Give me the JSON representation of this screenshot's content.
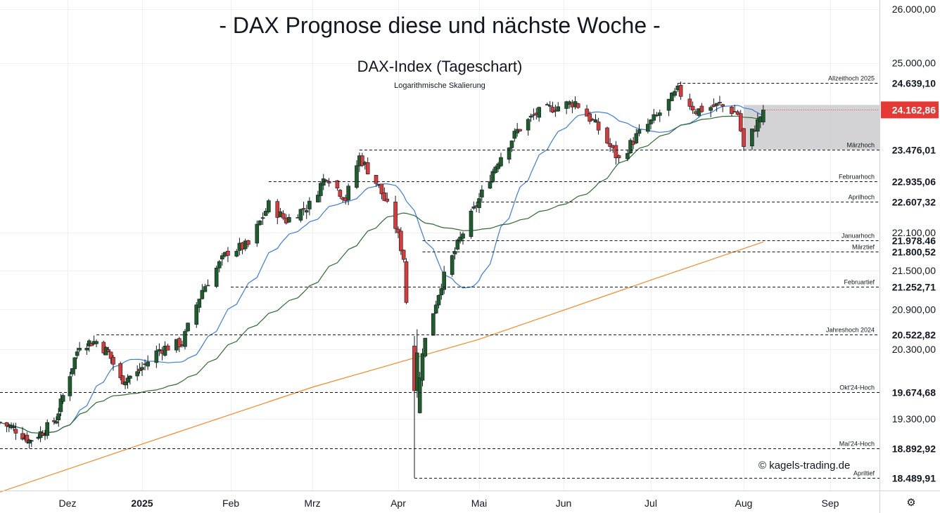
{
  "title": "- DAX Prognose diese und nächste Woche -",
  "subtitle": "DAX-Index (Tageschart)",
  "scale_note": "Logarithmische Skalierung",
  "watermark": "© kagels-trading.de",
  "settings_icon": "gear-icon",
  "colors": {
    "up": "#1e5e2a",
    "down": "#d93b3b",
    "sma20": "#3b7be0",
    "sma50": "#2e6b2e",
    "sma200": "#f08a2a",
    "current_price_bg": "#e53935",
    "level_label_bg": "#ffffff",
    "zone": "#c8c8cc"
  },
  "chart_data": {
    "type": "candlestick",
    "y_scale": "log",
    "y_ticks": [
      "26.000,00",
      "25.000,00",
      "22.100,00",
      "21.500,00",
      "20.900,00",
      "20.300,00",
      "19.300,00"
    ],
    "x_ticks": [
      "Dez",
      "2025",
      "Feb",
      "Mrz",
      "Apr",
      "Mai",
      "Jun",
      "Jul",
      "Aug",
      "Sep"
    ],
    "current_price": {
      "value": 24162.86,
      "label": "24.162,86"
    },
    "levels": [
      {
        "name": "Allzeithoch 2025",
        "value": 24639.1,
        "label": "24.639,10"
      },
      {
        "name": "Märzhoch",
        "value": 23476.01,
        "label": "23.476,01"
      },
      {
        "name": "Februarhoch",
        "value": 22935.06,
        "label": "22.935,06"
      },
      {
        "name": "Aprilhoch",
        "value": 22607.32,
        "label": "22.607,32"
      },
      {
        "name": "Januarhoch",
        "value": 21978.46,
        "label": "21.978,46"
      },
      {
        "name": "Märztief",
        "value": 21800.52,
        "label": "21.800,52"
      },
      {
        "name": "Februartief",
        "value": 21252.71,
        "label": "21.252,71"
      },
      {
        "name": "Jahreshoch 2024",
        "value": 20522.82,
        "label": "20.522,82"
      },
      {
        "name": "Okt'24-Hoch",
        "value": 19674.68,
        "label": "19.674,68"
      },
      {
        "name": "Mai'24-Hoch",
        "value": 18892.92,
        "label": "18.892,92"
      },
      {
        "name": "Apriltief",
        "value": 18489.91,
        "label": "18.489,91"
      }
    ],
    "zone": {
      "from_date": "2025-08-01",
      "low": 23476.01,
      "high": 24250
    },
    "grid": true,
    "moving_averages": [
      "SMA20",
      "SMA50",
      "SMA200"
    ]
  }
}
